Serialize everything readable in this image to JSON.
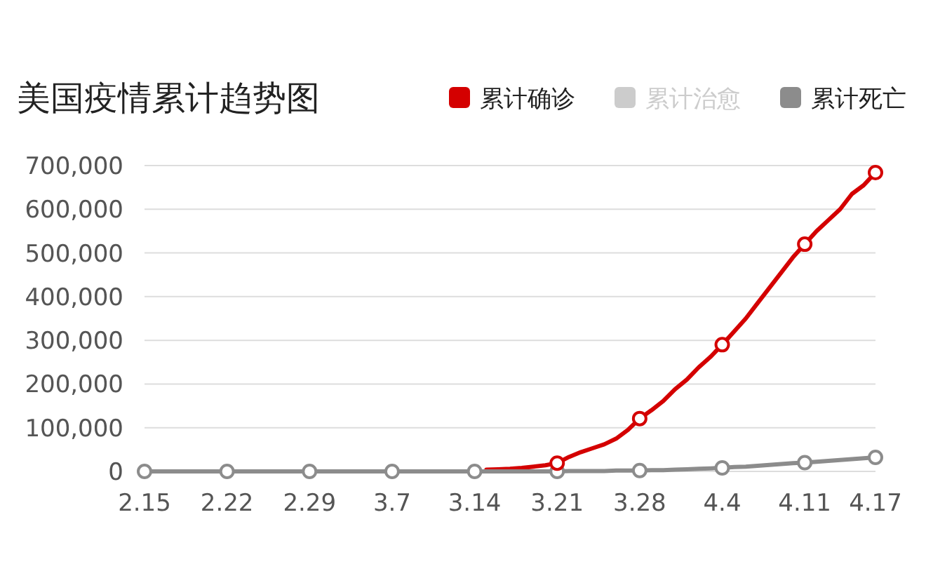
{
  "chart_data": {
    "type": "line",
    "title": "美国疫情累计趋势图",
    "categories": [
      "2.15",
      null,
      null,
      null,
      null,
      null,
      null,
      "2.22",
      null,
      null,
      null,
      null,
      null,
      null,
      "2.29",
      null,
      null,
      null,
      null,
      null,
      null,
      "3.7",
      null,
      null,
      null,
      null,
      null,
      null,
      "3.14",
      null,
      null,
      null,
      null,
      null,
      null,
      "3.21",
      null,
      null,
      null,
      null,
      null,
      null,
      "3.28",
      null,
      null,
      null,
      null,
      null,
      null,
      "4.4",
      null,
      null,
      null,
      null,
      null,
      null,
      "4.11",
      null,
      null,
      null,
      null,
      null,
      "4.17"
    ],
    "series": [
      {
        "name": "累计确诊",
        "color": "#d40000",
        "marker": "none",
        "values": [
          null,
          null,
          null,
          null,
          null,
          null,
          null,
          null,
          null,
          null,
          null,
          null,
          null,
          null,
          null,
          null,
          null,
          null,
          null,
          null,
          null,
          null,
          null,
          null,
          null,
          null,
          null,
          null,
          null,
          4000,
          5000,
          6000,
          8000,
          11000,
          14000,
          19000,
          33000,
          44000,
          53000,
          62000,
          75000,
          95000,
          121000,
          140000,
          161000,
          188000,
          210000,
          238000,
          262000,
          290000,
          320000,
          350000,
          385000,
          420000,
          455000,
          490000,
          520000,
          550000,
          575000,
          600000,
          635000,
          655000,
          684000
        ]
      },
      {
        "name": "累计治愈",
        "color": "#cccccc",
        "marker": "none",
        "values": [
          null,
          null,
          null,
          null,
          null,
          null,
          null,
          null,
          null,
          null,
          null,
          null,
          null,
          null,
          null,
          null,
          null,
          null,
          null,
          null,
          null,
          null,
          null,
          null,
          null,
          null,
          null,
          null,
          null,
          null,
          null,
          null,
          null,
          null,
          null,
          null,
          null,
          null,
          null,
          null,
          null,
          null,
          null,
          null,
          null,
          null,
          null,
          null,
          null,
          null,
          null,
          null,
          null,
          null,
          null,
          null,
          null,
          null,
          null,
          null,
          null,
          null,
          null
        ]
      },
      {
        "name": "累计死亡",
        "color": "#8c8c8c",
        "marker": "none",
        "values": [
          0,
          0,
          0,
          0,
          0,
          0,
          0,
          0,
          0,
          0,
          0,
          0,
          0,
          0,
          0,
          0,
          0,
          0,
          0,
          0,
          0,
          0,
          0,
          0,
          0,
          0,
          0,
          0,
          0,
          0,
          0,
          0,
          0,
          0,
          0,
          0,
          1000,
          1000,
          1000,
          1000,
          2000,
          2000,
          2000,
          3000,
          3000,
          4000,
          5000,
          6000,
          7000,
          8000,
          10000,
          11000,
          13000,
          15000,
          17000,
          19000,
          20000,
          22000,
          24000,
          26000,
          28000,
          30000,
          32000
        ]
      },
      {
        "type": "scatter",
        "color": "#8c8c8c",
        "x": [
          "2.15",
          "2.22",
          "2.29",
          "3.7",
          "3.14",
          "3.21",
          "3.28",
          "4.4",
          "4.11",
          "4.17"
        ],
        "values": [
          0,
          0,
          0,
          0,
          0,
          0,
          2000,
          8000,
          20000,
          32000
        ]
      },
      {
        "type": "scatter",
        "color": "#d40000",
        "x": [
          "3.21",
          "3.28",
          "4.4",
          "4.11",
          "4.17"
        ],
        "values": [
          19000,
          121000,
          290000,
          520000,
          684000
        ]
      }
    ],
    "ylim": [
      0,
      700000
    ],
    "yticks": [
      {
        "value": 0,
        "label": "0"
      },
      {
        "value": 100000,
        "label": "100,000"
      },
      {
        "value": 200000,
        "label": "200,000"
      },
      {
        "value": 300000,
        "label": "300,000"
      },
      {
        "value": 400000,
        "label": "400,000"
      },
      {
        "value": 500000,
        "label": "500,000"
      },
      {
        "value": 600000,
        "label": "600,000"
      },
      {
        "value": 700000,
        "label": "700,000"
      }
    ],
    "grid": "y",
    "legend": "top right",
    "marker": "circle",
    "line_style": "solid"
  }
}
